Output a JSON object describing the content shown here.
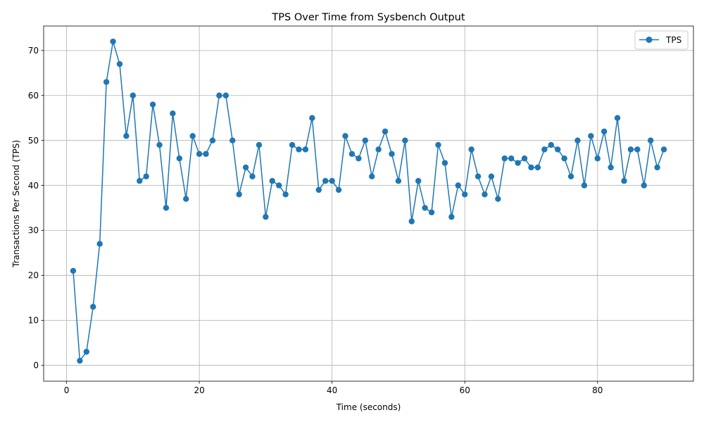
{
  "chart_data": {
    "type": "line",
    "title": "TPS Over Time from Sysbench Output",
    "xlabel": "Time (seconds)",
    "ylabel": "Transactions Per Second (TPS)",
    "xlim": [
      -3.45,
      94.45
    ],
    "ylim": [
      -3.55,
      75.45
    ],
    "x_ticks": [
      0,
      20,
      40,
      60,
      80
    ],
    "y_ticks": [
      0,
      10,
      20,
      30,
      40,
      50,
      60,
      70
    ],
    "grid": true,
    "legend_position": "top-right",
    "series": [
      {
        "name": "TPS",
        "color": "#1f77b4",
        "marker": "circle",
        "x": [
          1,
          2,
          3,
          4,
          5,
          6,
          7,
          8,
          9,
          10,
          11,
          12,
          13,
          14,
          15,
          16,
          17,
          18,
          19,
          20,
          21,
          22,
          23,
          24,
          25,
          26,
          27,
          28,
          29,
          30,
          31,
          32,
          33,
          34,
          35,
          36,
          37,
          38,
          39,
          40,
          41,
          42,
          43,
          44,
          45,
          46,
          47,
          48,
          49,
          50,
          51,
          52,
          53,
          54,
          55,
          56,
          57,
          58,
          59,
          60,
          61,
          62,
          63,
          64,
          65,
          66,
          67,
          68,
          69,
          70,
          71,
          72,
          73,
          74,
          75,
          76,
          77,
          78,
          79,
          80,
          81,
          82,
          83,
          84,
          85,
          86,
          87,
          88,
          89,
          90
        ],
        "values": [
          21,
          1,
          3,
          13,
          27,
          63,
          72,
          67,
          51,
          60,
          41,
          42,
          58,
          49,
          35,
          56,
          46,
          37,
          51,
          47,
          47,
          50,
          60,
          60,
          50,
          38,
          44,
          42,
          49,
          33,
          41,
          40,
          38,
          49,
          48,
          48,
          55,
          39,
          41,
          41,
          39,
          51,
          47,
          46,
          50,
          42,
          48,
          52,
          47,
          41,
          50,
          32,
          41,
          35,
          34,
          49,
          45,
          33,
          40,
          38,
          48,
          42,
          38,
          42,
          37,
          46,
          46,
          45,
          46,
          44,
          44,
          48,
          49,
          48,
          46,
          42,
          50,
          40,
          51,
          46,
          52,
          44,
          55,
          41,
          48,
          48,
          40,
          50,
          44,
          48
        ]
      }
    ]
  }
}
